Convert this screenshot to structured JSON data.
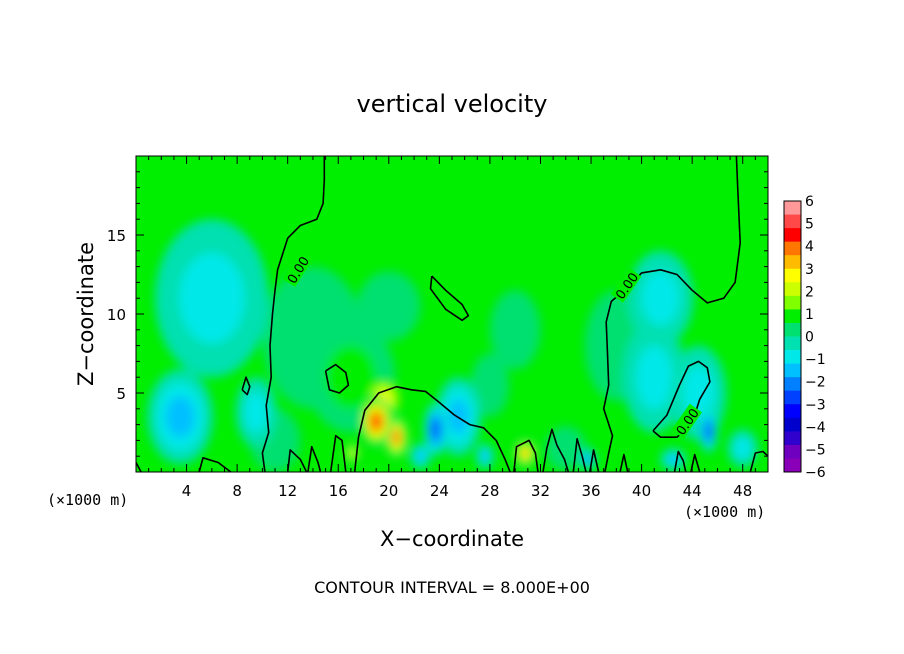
{
  "chart_data": {
    "type": "heatmap",
    "title": "vertical velocity",
    "xlabel": "X−coordinate",
    "ylabel": "Z−coordinate",
    "x_unit_left": "(×1000 m)",
    "x_unit_right": "(×1000 m)",
    "xlim": [
      0,
      50
    ],
    "ylim": [
      0,
      20
    ],
    "xticks": [
      4,
      8,
      12,
      16,
      20,
      24,
      28,
      32,
      36,
      40,
      44,
      48
    ],
    "xtick_labels": [
      "4",
      "8",
      "12",
      "16",
      "20",
      "24",
      "28",
      "32",
      "36",
      "40",
      "44",
      "48"
    ],
    "yticks": [
      5,
      10,
      15
    ],
    "ytick_labels": [
      "5",
      "10",
      "15"
    ],
    "footer": "CONTOUR INTERVAL = 8.000E+00",
    "contour_label": "0.00",
    "colorbar": {
      "range": [
        -6,
        6
      ],
      "labels": [
        "6",
        "5",
        "4",
        "3",
        "2",
        "1",
        "0",
        "−1",
        "−2",
        "−3",
        "−4",
        "−5",
        "−6"
      ],
      "colors": [
        "#ff9999",
        "#ff4848",
        "#ff0000",
        "#ff7700",
        "#ffbb00",
        "#ffff00",
        "#ccff00",
        "#7fff00",
        "#00ee00",
        "#00e070",
        "#00e0b0",
        "#00e8e8",
        "#00c0ff",
        "#0080ff",
        "#0040ff",
        "#0000ff",
        "#0000cc",
        "#3000cc",
        "#7000c0",
        "#8a00b8"
      ]
    },
    "background_color": "#00ee00",
    "features": [
      {
        "x": 3.5,
        "z": 3.5,
        "rx": 2.6,
        "rz": 3.0,
        "value": -1.6
      },
      {
        "x": 6.0,
        "z": 11.0,
        "rx": 4.5,
        "rz": 5.0,
        "value": -0.7
      },
      {
        "x": 9.5,
        "z": 3.8,
        "rx": 1.6,
        "rz": 2.2,
        "value": -1.0
      },
      {
        "x": 14.0,
        "z": 8.5,
        "rx": 4.0,
        "rz": 4.5,
        "value": 0.6
      },
      {
        "x": 17.0,
        "z": 6.0,
        "rx": 3.5,
        "rz": 3.5,
        "value": 0.9
      },
      {
        "x": 19.0,
        "z": 3.2,
        "rx": 1.3,
        "rz": 1.6,
        "value": 4.5
      },
      {
        "x": 20.6,
        "z": 2.2,
        "rx": 0.9,
        "rz": 1.3,
        "value": 4.2
      },
      {
        "x": 19.6,
        "z": 4.6,
        "rx": 1.4,
        "rz": 1.3,
        "value": 2.5
      },
      {
        "x": 17.1,
        "z": 1.2,
        "rx": 0.5,
        "rz": 0.6,
        "value": 3.0
      },
      {
        "x": 20.0,
        "z": 10.5,
        "rx": 2.5,
        "rz": 2.2,
        "value": 0.4
      },
      {
        "x": 23.7,
        "z": 2.7,
        "rx": 0.9,
        "rz": 1.7,
        "value": -2.8
      },
      {
        "x": 25.5,
        "z": 3.5,
        "rx": 1.8,
        "rz": 2.5,
        "value": -1.3
      },
      {
        "x": 28.0,
        "z": 5.5,
        "rx": 1.5,
        "rz": 2.0,
        "value": 0.5
      },
      {
        "x": 30.0,
        "z": 9.0,
        "rx": 2.0,
        "rz": 2.5,
        "value": 0.5
      },
      {
        "x": 30.8,
        "z": 1.2,
        "rx": 0.9,
        "rz": 0.9,
        "value": 3.4
      },
      {
        "x": 34.0,
        "z": 1.5,
        "rx": 1.6,
        "rz": 1.4,
        "value": 0.6
      },
      {
        "x": 35.8,
        "z": 0.8,
        "rx": 0.6,
        "rz": 0.7,
        "value": -2.2
      },
      {
        "x": 27.6,
        "z": 1.0,
        "rx": 0.7,
        "rz": 0.8,
        "value": -1.6
      },
      {
        "x": 38.0,
        "z": 8.0,
        "rx": 2.5,
        "rz": 3.5,
        "value": 0.4
      },
      {
        "x": 41.0,
        "z": 6.0,
        "rx": 2.5,
        "rz": 3.5,
        "value": -0.7
      },
      {
        "x": 41.5,
        "z": 11.0,
        "rx": 2.6,
        "rz": 3.0,
        "value": -0.9
      },
      {
        "x": 45.3,
        "z": 2.6,
        "rx": 0.7,
        "rz": 1.4,
        "value": -2.8
      },
      {
        "x": 44.5,
        "z": 5.0,
        "rx": 2.2,
        "rz": 3.0,
        "value": -1.1
      },
      {
        "x": 48.0,
        "z": 1.5,
        "rx": 1.2,
        "rz": 1.2,
        "value": -0.7
      },
      {
        "x": 42.5,
        "z": 0.8,
        "rx": 1.0,
        "rz": 0.7,
        "value": -1.5
      },
      {
        "x": 22.5,
        "z": 1.0,
        "rx": 0.8,
        "rz": 0.8,
        "value": -1.3
      },
      {
        "x": 11.0,
        "z": 2.0,
        "rx": 2.0,
        "rz": 2.0,
        "value": 0.5
      }
    ],
    "zero_contours": [
      [
        [
          14.9,
          20
        ],
        [
          14.9,
          18.5
        ],
        [
          14.8,
          17.0
        ],
        [
          14.3,
          16.0
        ],
        [
          13.0,
          15.6
        ],
        [
          12.0,
          14.8
        ],
        [
          11.2,
          12.8
        ],
        [
          11.0,
          11.5
        ],
        [
          10.8,
          10.0
        ],
        [
          10.6,
          8.0
        ],
        [
          10.7,
          6.0
        ],
        [
          10.3,
          4.2
        ],
        [
          10.5,
          2.5
        ],
        [
          10.0,
          1.2
        ],
        [
          10.2,
          0
        ]
      ],
      [
        [
          47.5,
          20
        ],
        [
          47.6,
          18.0
        ],
        [
          47.8,
          14.5
        ],
        [
          47.4,
          12.0
        ],
        [
          46.5,
          11.0
        ],
        [
          45.2,
          10.7
        ],
        [
          44.0,
          11.5
        ],
        [
          42.8,
          12.5
        ],
        [
          41.5,
          12.8
        ],
        [
          40.0,
          12.6
        ],
        [
          38.8,
          11.6
        ],
        [
          37.6,
          10.8
        ],
        [
          37.2,
          9.5
        ],
        [
          37.3,
          7.5
        ],
        [
          37.4,
          5.5
        ],
        [
          37.0,
          4.0
        ],
        [
          37.7,
          2.3
        ],
        [
          37.4,
          1.2
        ],
        [
          37.1,
          0
        ]
      ],
      [
        [
          15.0,
          6.4
        ],
        [
          15.8,
          6.8
        ],
        [
          16.6,
          6.3
        ],
        [
          16.8,
          5.5
        ],
        [
          16.1,
          5.0
        ],
        [
          15.3,
          5.2
        ],
        [
          15.0,
          6.4
        ]
      ],
      [
        [
          23.4,
          12.4
        ],
        [
          24.5,
          11.5
        ],
        [
          25.8,
          10.6
        ],
        [
          26.3,
          9.9
        ],
        [
          25.8,
          9.6
        ],
        [
          24.5,
          10.3
        ],
        [
          23.3,
          11.6
        ],
        [
          23.4,
          12.4
        ]
      ],
      [
        [
          17.3,
          0
        ],
        [
          17.6,
          2.2
        ],
        [
          18.1,
          3.9
        ],
        [
          19.2,
          5.0
        ],
        [
          20.6,
          5.4
        ],
        [
          21.8,
          5.2
        ],
        [
          22.9,
          5.1
        ],
        [
          24.0,
          4.4
        ],
        [
          25.2,
          3.6
        ],
        [
          26.4,
          3.0
        ],
        [
          27.5,
          2.8
        ],
        [
          28.5,
          2.0
        ],
        [
          29.2,
          0.8
        ],
        [
          29.6,
          0
        ]
      ],
      [
        [
          32.2,
          0
        ],
        [
          32.5,
          1.5
        ],
        [
          32.9,
          2.7
        ],
        [
          33.3,
          1.7
        ],
        [
          33.9,
          0.8
        ],
        [
          34.2,
          0
        ]
      ],
      [
        [
          40.9,
          2.6
        ],
        [
          42.0,
          3.6
        ],
        [
          43.0,
          5.5
        ],
        [
          43.7,
          6.7
        ],
        [
          44.5,
          7.0
        ],
        [
          45.2,
          6.6
        ],
        [
          45.4,
          5.7
        ],
        [
          44.6,
          4.6
        ],
        [
          44.2,
          3.6
        ],
        [
          43.6,
          2.8
        ],
        [
          42.8,
          2.2
        ],
        [
          41.5,
          2.2
        ],
        [
          40.9,
          2.6
        ]
      ],
      [
        [
          8.4,
          5.2
        ],
        [
          8.7,
          6.0
        ],
        [
          9.0,
          5.4
        ],
        [
          8.8,
          4.9
        ],
        [
          8.4,
          5.2
        ]
      ],
      [
        [
          5.0,
          0
        ],
        [
          5.3,
          0.9
        ],
        [
          6.5,
          0.6
        ],
        [
          7.5,
          0
        ]
      ],
      [
        [
          12.0,
          0
        ],
        [
          12.2,
          1.4
        ],
        [
          13.0,
          0.8
        ],
        [
          13.5,
          0
        ]
      ],
      [
        [
          13.6,
          0
        ],
        [
          13.9,
          1.6
        ],
        [
          14.4,
          0.6
        ],
        [
          14.6,
          0
        ]
      ],
      [
        [
          15.4,
          0
        ],
        [
          15.8,
          2.3
        ],
        [
          16.3,
          2.0
        ],
        [
          16.6,
          0
        ]
      ],
      [
        [
          29.9,
          0
        ],
        [
          30.1,
          1.6
        ],
        [
          31.1,
          2.0
        ],
        [
          31.6,
          1.2
        ],
        [
          31.8,
          0
        ]
      ],
      [
        [
          34.6,
          0
        ],
        [
          34.9,
          2.1
        ],
        [
          35.3,
          1.0
        ],
        [
          35.6,
          0
        ]
      ],
      [
        [
          35.9,
          0
        ],
        [
          36.2,
          1.4
        ],
        [
          36.6,
          0
        ]
      ],
      [
        [
          38.3,
          0
        ],
        [
          38.6,
          1.1
        ],
        [
          38.9,
          0
        ]
      ],
      [
        [
          42.6,
          0
        ],
        [
          42.9,
          1.3
        ],
        [
          43.3,
          0.7
        ],
        [
          43.5,
          0
        ]
      ],
      [
        [
          43.9,
          0
        ],
        [
          44.2,
          1.1
        ],
        [
          44.6,
          0
        ]
      ],
      [
        [
          48.6,
          0
        ],
        [
          49.0,
          1.2
        ],
        [
          49.6,
          1.3
        ],
        [
          50,
          1.0
        ]
      ],
      [
        [
          0,
          0.6
        ],
        [
          0.4,
          0
        ]
      ]
    ],
    "contour_label_positions": [
      {
        "x": 12.8,
        "z": 12.8,
        "angle": -58
      },
      {
        "x": 38.8,
        "z": 11.8,
        "angle": -55
      },
      {
        "x": 43.6,
        "z": 3.2,
        "angle": -55
      }
    ]
  }
}
